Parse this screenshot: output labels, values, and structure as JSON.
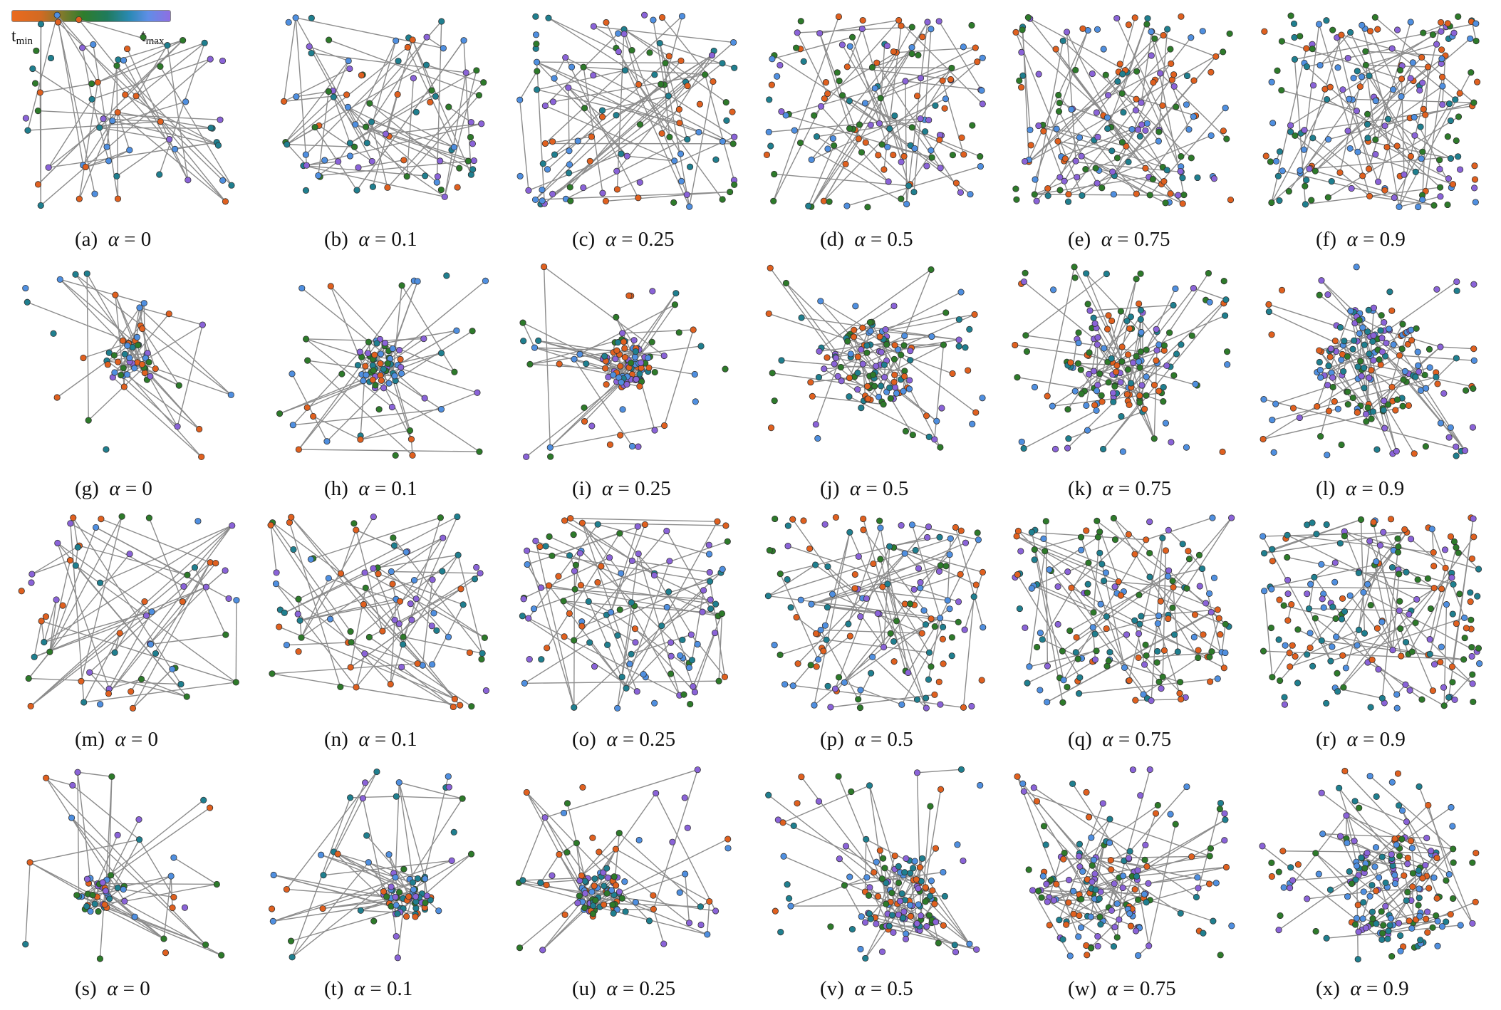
{
  "legend": {
    "gradient_colors": [
      "#ea6a1e",
      "#d26a23",
      "#7e7a2c",
      "#2f7d2c",
      "#1f7b5c",
      "#2a89b3",
      "#5f8ee6",
      "#8f6ee2"
    ],
    "tmin_base": "t",
    "tmin_sub": "min",
    "tmax_base": "t",
    "tmax_sub": "max"
  },
  "node_palette": {
    "orange": "#e0601f",
    "green": "#2d7a2a",
    "teal": "#1f7f8f",
    "blue": "#4f8fe0",
    "purple": "#8a63d8",
    "edge": "#8c8c8c",
    "outline": "#333333"
  },
  "panels": [
    {
      "letter": "(a)",
      "alpha_symbol": "α",
      "equals": "=",
      "alpha_value": "0"
    },
    {
      "letter": "(b)",
      "alpha_symbol": "α",
      "equals": "=",
      "alpha_value": "0.1"
    },
    {
      "letter": "(c)",
      "alpha_symbol": "α",
      "equals": "=",
      "alpha_value": "0.25"
    },
    {
      "letter": "(d)",
      "alpha_symbol": "α",
      "equals": "=",
      "alpha_value": "0.5"
    },
    {
      "letter": "(e)",
      "alpha_symbol": "α",
      "equals": "=",
      "alpha_value": "0.75"
    },
    {
      "letter": "(f)",
      "alpha_symbol": "α",
      "equals": "=",
      "alpha_value": "0.9"
    },
    {
      "letter": "(g)",
      "alpha_symbol": "α",
      "equals": "=",
      "alpha_value": "0"
    },
    {
      "letter": "(h)",
      "alpha_symbol": "α",
      "equals": "=",
      "alpha_value": "0.1"
    },
    {
      "letter": "(i)",
      "alpha_symbol": "α",
      "equals": "=",
      "alpha_value": "0.25"
    },
    {
      "letter": "(j)",
      "alpha_symbol": "α",
      "equals": "=",
      "alpha_value": "0.5"
    },
    {
      "letter": "(k)",
      "alpha_symbol": "α",
      "equals": "=",
      "alpha_value": "0.75"
    },
    {
      "letter": "(l)",
      "alpha_symbol": "α",
      "equals": "=",
      "alpha_value": "0.9"
    },
    {
      "letter": "(m)",
      "alpha_symbol": "α",
      "equals": "=",
      "alpha_value": "0"
    },
    {
      "letter": "(n)",
      "alpha_symbol": "α",
      "equals": "=",
      "alpha_value": "0.1"
    },
    {
      "letter": "(o)",
      "alpha_symbol": "α",
      "equals": "=",
      "alpha_value": "0.25"
    },
    {
      "letter": "(p)",
      "alpha_symbol": "α",
      "equals": "=",
      "alpha_value": "0.5"
    },
    {
      "letter": "(q)",
      "alpha_symbol": "α",
      "equals": "=",
      "alpha_value": "0.75"
    },
    {
      "letter": "(r)",
      "alpha_symbol": "α",
      "equals": "=",
      "alpha_value": "0.9"
    },
    {
      "letter": "(s)",
      "alpha_symbol": "α",
      "equals": "=",
      "alpha_value": "0"
    },
    {
      "letter": "(t)",
      "alpha_symbol": "α",
      "equals": "=",
      "alpha_value": "0.1"
    },
    {
      "letter": "(u)",
      "alpha_symbol": "α",
      "equals": "=",
      "alpha_value": "0.25"
    },
    {
      "letter": "(v)",
      "alpha_symbol": "α",
      "equals": "=",
      "alpha_value": "0.5"
    },
    {
      "letter": "(w)",
      "alpha_symbol": "α",
      "equals": "=",
      "alpha_value": "0.75"
    },
    {
      "letter": "(x)",
      "alpha_symbol": "α",
      "equals": "=",
      "alpha_value": "0.9"
    }
  ]
}
